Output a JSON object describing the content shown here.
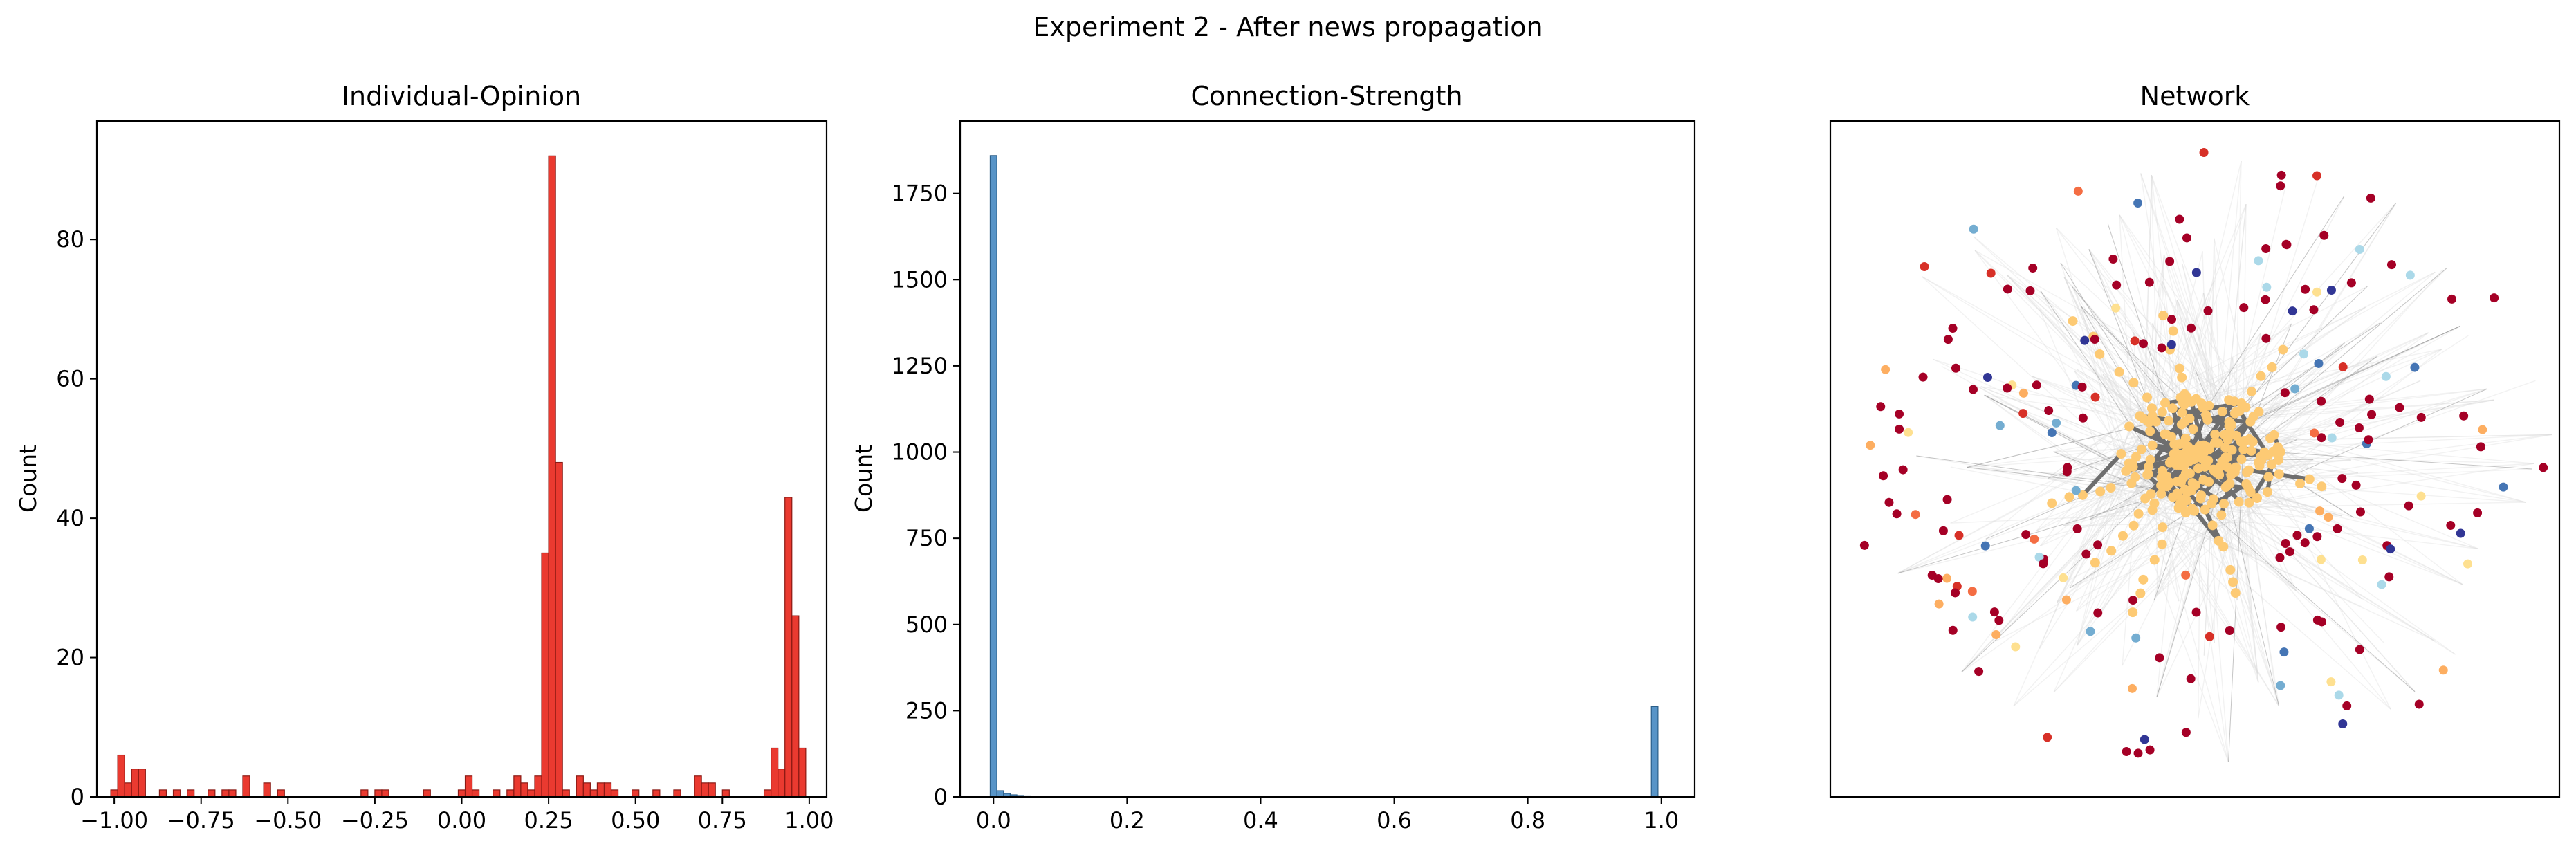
{
  "figure": {
    "suptitle": "Experiment 2 - After news propagation"
  },
  "chart_data": [
    {
      "type": "bar",
      "panel": "histogram",
      "title": "Individual-Opinion",
      "xlabel": "",
      "ylabel": "Count",
      "xlim": [
        -1.05,
        1.05
      ],
      "ylim": [
        0,
        97
      ],
      "xticks": [
        -1.0,
        -0.75,
        -0.5,
        -0.25,
        0.0,
        0.25,
        0.5,
        0.75,
        1.0
      ],
      "xtick_labels": [
        "−1.00",
        "−0.75",
        "−0.50",
        "−0.25",
        "0.00",
        "0.25",
        "0.50",
        "0.75",
        "1.00"
      ],
      "yticks": [
        0,
        20,
        40,
        60,
        80
      ],
      "ytick_labels": [
        "0",
        "20",
        "40",
        "60",
        "80"
      ],
      "bin_width": 0.02,
      "color": "#e8291e",
      "edge_color": "#8b1a14",
      "bins": [
        {
          "x": -1.0,
          "count": 1
        },
        {
          "x": -0.98,
          "count": 6
        },
        {
          "x": -0.96,
          "count": 2
        },
        {
          "x": -0.94,
          "count": 4
        },
        {
          "x": -0.92,
          "count": 4
        },
        {
          "x": -0.86,
          "count": 1
        },
        {
          "x": -0.82,
          "count": 1
        },
        {
          "x": -0.78,
          "count": 1
        },
        {
          "x": -0.72,
          "count": 1
        },
        {
          "x": -0.68,
          "count": 1
        },
        {
          "x": -0.66,
          "count": 1
        },
        {
          "x": -0.62,
          "count": 3
        },
        {
          "x": -0.56,
          "count": 2
        },
        {
          "x": -0.52,
          "count": 1
        },
        {
          "x": -0.28,
          "count": 1
        },
        {
          "x": -0.24,
          "count": 1
        },
        {
          "x": -0.22,
          "count": 1
        },
        {
          "x": -0.1,
          "count": 1
        },
        {
          "x": 0.0,
          "count": 1
        },
        {
          "x": 0.02,
          "count": 3
        },
        {
          "x": 0.04,
          "count": 1
        },
        {
          "x": 0.1,
          "count": 1
        },
        {
          "x": 0.14,
          "count": 1
        },
        {
          "x": 0.16,
          "count": 3
        },
        {
          "x": 0.18,
          "count": 2
        },
        {
          "x": 0.2,
          "count": 1
        },
        {
          "x": 0.22,
          "count": 3
        },
        {
          "x": 0.24,
          "count": 35
        },
        {
          "x": 0.26,
          "count": 92
        },
        {
          "x": 0.28,
          "count": 48
        },
        {
          "x": 0.3,
          "count": 1
        },
        {
          "x": 0.34,
          "count": 3
        },
        {
          "x": 0.36,
          "count": 2
        },
        {
          "x": 0.38,
          "count": 1
        },
        {
          "x": 0.4,
          "count": 2
        },
        {
          "x": 0.42,
          "count": 2
        },
        {
          "x": 0.44,
          "count": 1
        },
        {
          "x": 0.5,
          "count": 1
        },
        {
          "x": 0.56,
          "count": 1
        },
        {
          "x": 0.62,
          "count": 1
        },
        {
          "x": 0.68,
          "count": 3
        },
        {
          "x": 0.7,
          "count": 2
        },
        {
          "x": 0.72,
          "count": 2
        },
        {
          "x": 0.76,
          "count": 1
        },
        {
          "x": 0.88,
          "count": 1
        },
        {
          "x": 0.9,
          "count": 7
        },
        {
          "x": 0.92,
          "count": 4
        },
        {
          "x": 0.94,
          "count": 43
        },
        {
          "x": 0.96,
          "count": 26
        },
        {
          "x": 0.98,
          "count": 7
        }
      ]
    },
    {
      "type": "bar",
      "panel": "histogram",
      "title": "Connection-Strength",
      "xlabel": "",
      "ylabel": "Count",
      "xlim": [
        -0.05,
        1.05
      ],
      "ylim": [
        0,
        1960
      ],
      "xticks": [
        0.0,
        0.2,
        0.4,
        0.6,
        0.8,
        1.0
      ],
      "xtick_labels": [
        "0.0",
        "0.2",
        "0.4",
        "0.6",
        "0.8",
        "1.0"
      ],
      "yticks": [
        0,
        250,
        500,
        750,
        1000,
        1250,
        1500,
        1750
      ],
      "ytick_labels": [
        "0",
        "250",
        "500",
        "750",
        "1000",
        "1250",
        "1500",
        "1750"
      ],
      "bin_width": 0.01,
      "color": "#4a8bc2",
      "edge_color": "#2c5f8a",
      "bins": [
        {
          "x": 0.0,
          "count": 1860
        },
        {
          "x": 0.01,
          "count": 18
        },
        {
          "x": 0.02,
          "count": 10
        },
        {
          "x": 0.03,
          "count": 6
        },
        {
          "x": 0.04,
          "count": 4
        },
        {
          "x": 0.05,
          "count": 3
        },
        {
          "x": 0.06,
          "count": 2
        },
        {
          "x": 0.08,
          "count": 2
        },
        {
          "x": 0.1,
          "count": 1
        },
        {
          "x": 0.99,
          "count": 262
        }
      ]
    },
    {
      "type": "scatter",
      "panel": "network",
      "title": "Network",
      "hub_color": "#fdca74",
      "edge_color": "#6e6e6e",
      "node_colors": [
        "#a50026",
        "#313695",
        "#4575b4",
        "#74add1",
        "#abd9e9",
        "#fee090",
        "#fdae61",
        "#f46d43",
        "#d73027"
      ]
    }
  ]
}
